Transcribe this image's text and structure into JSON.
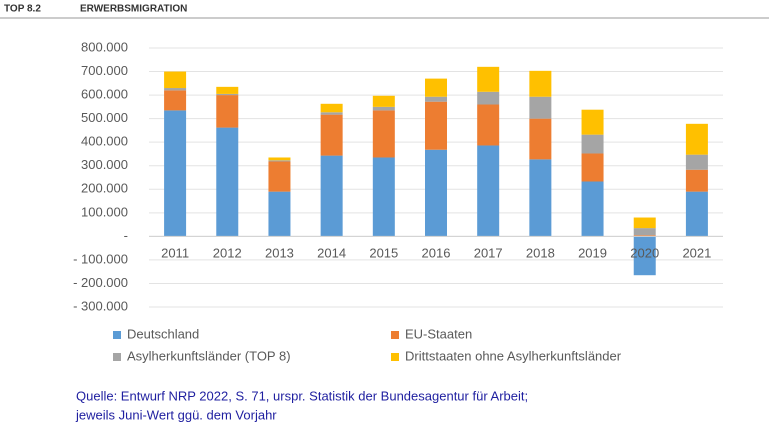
{
  "header": {
    "section": "TOP 8.2",
    "title": "ERWERBSMIGRATION"
  },
  "chart_data": {
    "type": "stacked_bar",
    "categories": [
      "2011",
      "2012",
      "2013",
      "2014",
      "2015",
      "2016",
      "2017",
      "2018",
      "2019",
      "2020",
      "2021"
    ],
    "series": [
      {
        "name": "Deutschland",
        "color": "#5b9bd5",
        "values": [
          535000,
          462000,
          190000,
          343000,
          335000,
          368000,
          386000,
          327000,
          233000,
          -165000,
          190000
        ]
      },
      {
        "name": "EU-Staaten",
        "color": "#ed7d31",
        "values": [
          85000,
          138000,
          128000,
          174000,
          200000,
          204000,
          174000,
          173000,
          119000,
          5000,
          93000
        ]
      },
      {
        "name": "Asylherkunftsländer (TOP 8)",
        "color": "#a5a5a5",
        "values": [
          10000,
          5000,
          5000,
          10000,
          15000,
          21000,
          54000,
          93000,
          80000,
          30000,
          64000
        ]
      },
      {
        "name": "Drittstaaten ohne Asylherkunftsländer",
        "color": "#ffc000",
        "values": [
          70000,
          30000,
          12000,
          36000,
          47000,
          77000,
          106000,
          110000,
          106000,
          45000,
          131000
        ]
      }
    ],
    "ylim": [
      -300000,
      800000
    ],
    "yticks": [
      {
        "value": -300000,
        "label": "- 300.000"
      },
      {
        "value": -200000,
        "label": "- 200.000"
      },
      {
        "value": -100000,
        "label": "- 100.000"
      },
      {
        "value": 0,
        "label": "-"
      },
      {
        "value": 100000,
        "label": "100.000"
      },
      {
        "value": 200000,
        "label": "200.000"
      },
      {
        "value": 300000,
        "label": "300.000"
      },
      {
        "value": 400000,
        "label": "400.000"
      },
      {
        "value": 500000,
        "label": "500.000"
      },
      {
        "value": 600000,
        "label": "600.000"
      },
      {
        "value": 700000,
        "label": "700.000"
      },
      {
        "value": 800000,
        "label": "800.000"
      }
    ],
    "grid": true
  },
  "source": [
    "Quelle: Entwurf NRP 2022, S. 71, urspr. Statistik der Bundesagentur für Arbeit;",
    "jeweils Juni-Wert ggü. dem Vorjahr"
  ]
}
